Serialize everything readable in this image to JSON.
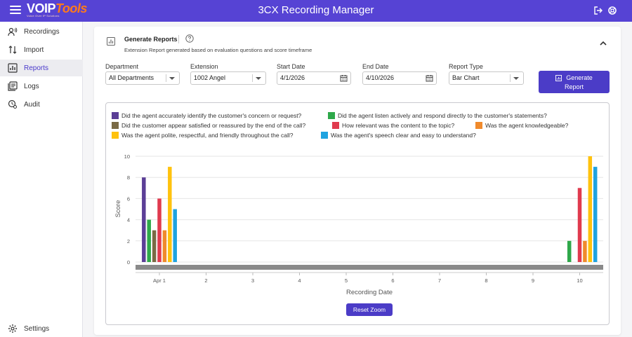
{
  "header": {
    "title": "3CX Recording Manager",
    "logo_main": "VOIP",
    "logo_accent": "Tools",
    "logo_tagline": "Voice Over IP Solutions",
    "brand_color": "#5643d4",
    "accent_color": "#ff7a1a"
  },
  "sidebar": {
    "items": [
      {
        "label": "Recordings",
        "icon": "recordings-icon",
        "active": false
      },
      {
        "label": "Import",
        "icon": "import-icon",
        "active": false
      },
      {
        "label": "Reports",
        "icon": "reports-icon",
        "active": true
      },
      {
        "label": "Logs",
        "icon": "logs-icon",
        "active": false
      },
      {
        "label": "Audit",
        "icon": "audit-icon",
        "active": false
      }
    ],
    "settings_label": "Settings"
  },
  "panel": {
    "title": "Generate Reports",
    "subtitle": "Extension Report generated based on evaluation questions and score timeframe"
  },
  "filters": {
    "department_label": "Department",
    "department_value": "All Departments",
    "extension_label": "Extension",
    "extension_value": "1002 Angel",
    "start_label": "Start Date",
    "start_value": "4/1/2026",
    "end_label": "End Date",
    "end_value": "4/10/2026",
    "type_label": "Report Type",
    "type_value": "Bar Chart",
    "generate_line1": "Generate",
    "generate_line2": "Report"
  },
  "reset_zoom_label": "Reset Zoom",
  "chart_data": {
    "type": "bar",
    "xlabel": "Recording Date",
    "ylabel": "Score",
    "ylim": [
      0,
      10
    ],
    "yticks": [
      0,
      2,
      4,
      6,
      8,
      10
    ],
    "x_ticks": [
      "Apr 1",
      "2",
      "3",
      "4",
      "5",
      "6",
      "7",
      "8",
      "9",
      "10"
    ],
    "grid": true,
    "legend_position": "top",
    "series": [
      {
        "name": "Did the agent accurately identify the customer's concern or request?",
        "color": "#5b3e96",
        "values": [
          8,
          null
        ]
      },
      {
        "name": "Did the agent listen actively and respond directly to the customer's statements?",
        "color": "#2ea84a",
        "values": [
          4,
          2
        ]
      },
      {
        "name": "Did the customer appear satisfied or reassured by the end of the call?",
        "color": "#7a6a45",
        "values": [
          3,
          null
        ]
      },
      {
        "name": "How relevant was the content to the topic?",
        "color": "#e03a4e",
        "values": [
          6,
          7
        ]
      },
      {
        "name": "Was the agent knowledgeable?",
        "color": "#f08a2c",
        "values": [
          3,
          2
        ]
      },
      {
        "name": "Was the agent polite, respectful, and friendly throughout the call?",
        "color": "#ffc20e",
        "values": [
          9,
          10
        ]
      },
      {
        "name": "Was the agent's speech clear and easy to understand?",
        "color": "#1fa3e0",
        "values": [
          5,
          9
        ]
      }
    ],
    "dates": [
      "Apr 1",
      "10"
    ]
  }
}
